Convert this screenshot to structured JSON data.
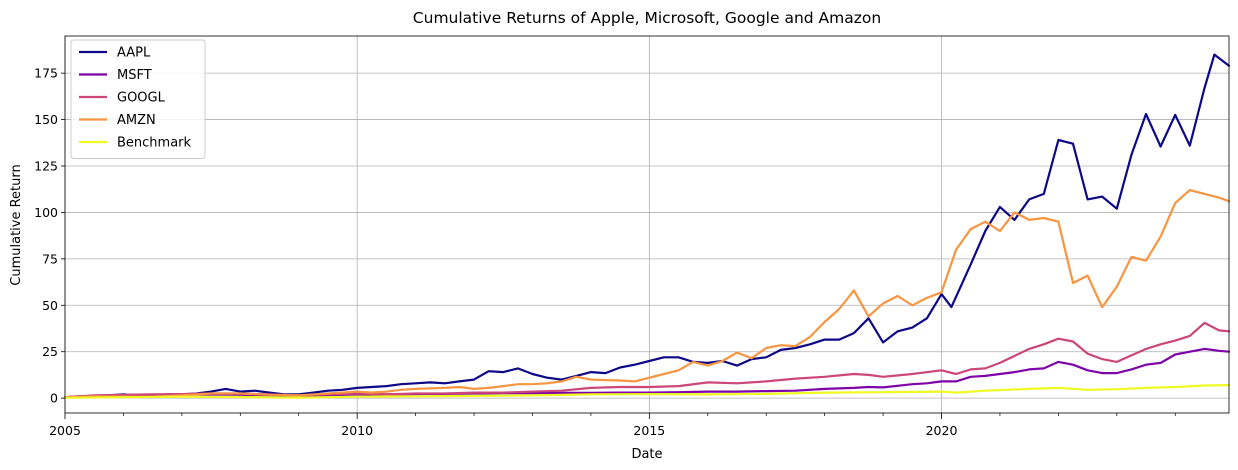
{
  "chart_data": {
    "type": "line",
    "title": "Cumulative Returns of Apple, Microsoft, Google and Amazon",
    "xlabel": "Date",
    "ylabel": "Cumulative Return",
    "xlim": [
      2005.0,
      2024.92
    ],
    "ylim": [
      -8,
      195
    ],
    "x_ticks": [
      2005,
      2010,
      2015,
      2020
    ],
    "y_ticks": [
      0,
      25,
      50,
      75,
      100,
      125,
      150,
      175
    ],
    "grid": true,
    "legend": "upper-left",
    "series": [
      {
        "name": "AAPL",
        "color": "#0d0887",
        "points": [
          [
            2005.0,
            0.5
          ],
          [
            2005.25,
            1.0
          ],
          [
            2005.5,
            1.2
          ],
          [
            2005.75,
            1.5
          ],
          [
            2006.0,
            2.0
          ],
          [
            2006.25,
            1.5
          ],
          [
            2006.5,
            1.5
          ],
          [
            2006.75,
            2.0
          ],
          [
            2007.0,
            2.0
          ],
          [
            2007.25,
            2.5
          ],
          [
            2007.5,
            3.5
          ],
          [
            2007.75,
            5.0
          ],
          [
            2008.0,
            3.5
          ],
          [
            2008.25,
            4.0
          ],
          [
            2008.5,
            3.0
          ],
          [
            2008.75,
            2.0
          ],
          [
            2009.0,
            2.0
          ],
          [
            2009.25,
            3.0
          ],
          [
            2009.5,
            4.0
          ],
          [
            2009.75,
            4.5
          ],
          [
            2010.0,
            5.5
          ],
          [
            2010.25,
            6.0
          ],
          [
            2010.5,
            6.5
          ],
          [
            2010.75,
            7.5
          ],
          [
            2011.0,
            8.0
          ],
          [
            2011.25,
            8.5
          ],
          [
            2011.5,
            8.0
          ],
          [
            2011.75,
            9.0
          ],
          [
            2012.0,
            10.0
          ],
          [
            2012.25,
            14.5
          ],
          [
            2012.5,
            14.0
          ],
          [
            2012.75,
            16.0
          ],
          [
            2013.0,
            13.0
          ],
          [
            2013.25,
            11.0
          ],
          [
            2013.5,
            10.0
          ],
          [
            2013.75,
            12.0
          ],
          [
            2014.0,
            14.0
          ],
          [
            2014.25,
            13.5
          ],
          [
            2014.5,
            16.5
          ],
          [
            2014.75,
            18.0
          ],
          [
            2015.0,
            20.0
          ],
          [
            2015.25,
            22.0
          ],
          [
            2015.5,
            22.0
          ],
          [
            2015.75,
            19.5
          ],
          [
            2016.0,
            19.0
          ],
          [
            2016.25,
            20.0
          ],
          [
            2016.5,
            17.5
          ],
          [
            2016.75,
            21.0
          ],
          [
            2017.0,
            22.0
          ],
          [
            2017.25,
            26.0
          ],
          [
            2017.5,
            27.0
          ],
          [
            2017.75,
            29.0
          ],
          [
            2018.0,
            31.5
          ],
          [
            2018.25,
            31.5
          ],
          [
            2018.5,
            35.0
          ],
          [
            2018.75,
            43.0
          ],
          [
            2019.0,
            30.0
          ],
          [
            2019.25,
            36.0
          ],
          [
            2019.5,
            38.0
          ],
          [
            2019.75,
            43.0
          ],
          [
            2020.0,
            56.0
          ],
          [
            2020.17,
            49.0
          ],
          [
            2020.5,
            72.0
          ],
          [
            2020.75,
            90.0
          ],
          [
            2021.0,
            103.0
          ],
          [
            2021.25,
            96.0
          ],
          [
            2021.5,
            107.0
          ],
          [
            2021.75,
            110.0
          ],
          [
            2022.0,
            139.0
          ],
          [
            2022.25,
            137.0
          ],
          [
            2022.5,
            107.0
          ],
          [
            2022.75,
            108.5
          ],
          [
            2023.0,
            102.0
          ],
          [
            2023.25,
            131.0
          ],
          [
            2023.5,
            153.0
          ],
          [
            2023.75,
            135.5
          ],
          [
            2024.0,
            152.5
          ],
          [
            2024.25,
            136.0
          ],
          [
            2024.5,
            167.0
          ],
          [
            2024.67,
            185.0
          ],
          [
            2024.92,
            179.0
          ]
        ]
      },
      {
        "name": "MSFT",
        "color": "#7e03a8",
        "points": [
          [
            2005.0,
            0.5
          ],
          [
            2005.5,
            1.2
          ],
          [
            2006.0,
            1.5
          ],
          [
            2006.5,
            1.5
          ],
          [
            2007.0,
            1.8
          ],
          [
            2007.5,
            2.0
          ],
          [
            2008.0,
            1.8
          ],
          [
            2008.5,
            1.5
          ],
          [
            2009.0,
            1.2
          ],
          [
            2009.5,
            1.5
          ],
          [
            2010.0,
            2.0
          ],
          [
            2010.5,
            2.0
          ],
          [
            2011.0,
            2.2
          ],
          [
            2011.5,
            2.3
          ],
          [
            2012.0,
            2.5
          ],
          [
            2012.5,
            2.7
          ],
          [
            2013.0,
            2.7
          ],
          [
            2013.5,
            2.8
          ],
          [
            2014.0,
            2.8
          ],
          [
            2014.5,
            3.0
          ],
          [
            2015.0,
            3.0
          ],
          [
            2015.5,
            3.2
          ],
          [
            2016.0,
            3.5
          ],
          [
            2016.5,
            3.5
          ],
          [
            2017.0,
            3.8
          ],
          [
            2017.5,
            4.0
          ],
          [
            2018.0,
            5.0
          ],
          [
            2018.5,
            5.5
          ],
          [
            2018.75,
            6.0
          ],
          [
            2019.0,
            5.8
          ],
          [
            2019.5,
            7.5
          ],
          [
            2019.75,
            8.0
          ],
          [
            2020.0,
            9.0
          ],
          [
            2020.25,
            9.0
          ],
          [
            2020.5,
            11.5
          ],
          [
            2020.75,
            12.0
          ],
          [
            2021.0,
            13.0
          ],
          [
            2021.25,
            14.0
          ],
          [
            2021.5,
            15.5
          ],
          [
            2021.75,
            16.0
          ],
          [
            2022.0,
            19.5
          ],
          [
            2022.25,
            18.0
          ],
          [
            2022.5,
            15.0
          ],
          [
            2022.75,
            13.5
          ],
          [
            2023.0,
            13.5
          ],
          [
            2023.25,
            15.5
          ],
          [
            2023.5,
            18.0
          ],
          [
            2023.75,
            19.0
          ],
          [
            2024.0,
            23.5
          ],
          [
            2024.25,
            25.0
          ],
          [
            2024.5,
            26.5
          ],
          [
            2024.75,
            25.5
          ],
          [
            2024.92,
            25.0
          ]
        ]
      },
      {
        "name": "GOOGL",
        "color": "#cc4778",
        "points": [
          [
            2005.0,
            0.5
          ],
          [
            2005.5,
            1.5
          ],
          [
            2006.0,
            1.8
          ],
          [
            2006.5,
            2.0
          ],
          [
            2007.0,
            2.2
          ],
          [
            2007.5,
            2.5
          ],
          [
            2008.0,
            2.5
          ],
          [
            2008.5,
            2.0
          ],
          [
            2009.0,
            1.5
          ],
          [
            2009.5,
            2.0
          ],
          [
            2010.0,
            2.5
          ],
          [
            2010.5,
            2.0
          ],
          [
            2011.0,
            2.5
          ],
          [
            2011.5,
            2.5
          ],
          [
            2012.0,
            3.0
          ],
          [
            2012.5,
            3.0
          ],
          [
            2013.0,
            3.5
          ],
          [
            2013.5,
            4.0
          ],
          [
            2014.0,
            5.5
          ],
          [
            2014.5,
            6.0
          ],
          [
            2015.0,
            6.0
          ],
          [
            2015.5,
            6.5
          ],
          [
            2016.0,
            8.5
          ],
          [
            2016.5,
            8.0
          ],
          [
            2017.0,
            9.0
          ],
          [
            2017.5,
            10.5
          ],
          [
            2018.0,
            11.5
          ],
          [
            2018.5,
            13.0
          ],
          [
            2018.75,
            12.5
          ],
          [
            2019.0,
            11.5
          ],
          [
            2019.5,
            13.0
          ],
          [
            2020.0,
            15.0
          ],
          [
            2020.25,
            13.0
          ],
          [
            2020.5,
            15.5
          ],
          [
            2020.75,
            16.0
          ],
          [
            2021.0,
            19.0
          ],
          [
            2021.5,
            26.5
          ],
          [
            2021.75,
            29.0
          ],
          [
            2022.0,
            32.0
          ],
          [
            2022.25,
            30.5
          ],
          [
            2022.5,
            24.0
          ],
          [
            2022.75,
            21.0
          ],
          [
            2023.0,
            19.5
          ],
          [
            2023.25,
            23.0
          ],
          [
            2023.5,
            26.5
          ],
          [
            2023.75,
            29.0
          ],
          [
            2024.0,
            31.0
          ],
          [
            2024.25,
            33.5
          ],
          [
            2024.5,
            40.5
          ],
          [
            2024.75,
            36.5
          ],
          [
            2024.92,
            36.0
          ]
        ]
      },
      {
        "name": "AMZN",
        "color": "#f89540",
        "points": [
          [
            2005.0,
            0.5
          ],
          [
            2005.5,
            1.0
          ],
          [
            2006.0,
            0.8
          ],
          [
            2006.5,
            0.8
          ],
          [
            2007.0,
            1.5
          ],
          [
            2007.5,
            2.5
          ],
          [
            2008.0,
            2.5
          ],
          [
            2008.5,
            1.8
          ],
          [
            2009.0,
            1.5
          ],
          [
            2009.5,
            2.5
          ],
          [
            2010.0,
            3.5
          ],
          [
            2010.25,
            3.0
          ],
          [
            2010.5,
            3.5
          ],
          [
            2010.75,
            4.5
          ],
          [
            2011.0,
            5.0
          ],
          [
            2011.5,
            5.5
          ],
          [
            2011.75,
            6.0
          ],
          [
            2012.0,
            5.0
          ],
          [
            2012.25,
            5.5
          ],
          [
            2012.5,
            6.5
          ],
          [
            2012.75,
            7.5
          ],
          [
            2013.0,
            7.5
          ],
          [
            2013.25,
            8.0
          ],
          [
            2013.5,
            9.0
          ],
          [
            2013.75,
            11.5
          ],
          [
            2014.0,
            10.0
          ],
          [
            2014.5,
            9.5
          ],
          [
            2014.75,
            9.0
          ],
          [
            2015.0,
            11.0
          ],
          [
            2015.25,
            13.0
          ],
          [
            2015.5,
            15.0
          ],
          [
            2015.75,
            19.5
          ],
          [
            2016.0,
            17.5
          ],
          [
            2016.25,
            20.0
          ],
          [
            2016.5,
            24.5
          ],
          [
            2016.75,
            21.5
          ],
          [
            2017.0,
            27.0
          ],
          [
            2017.25,
            28.5
          ],
          [
            2017.5,
            28.0
          ],
          [
            2017.75,
            33.0
          ],
          [
            2018.0,
            41.0
          ],
          [
            2018.25,
            48.0
          ],
          [
            2018.5,
            58.0
          ],
          [
            2018.75,
            44.0
          ],
          [
            2019.0,
            51.0
          ],
          [
            2019.25,
            55.0
          ],
          [
            2019.5,
            50.0
          ],
          [
            2019.75,
            54.0
          ],
          [
            2020.0,
            57.0
          ],
          [
            2020.25,
            80.0
          ],
          [
            2020.5,
            91.0
          ],
          [
            2020.75,
            95.0
          ],
          [
            2021.0,
            90.0
          ],
          [
            2021.25,
            100.0
          ],
          [
            2021.5,
            96.0
          ],
          [
            2021.75,
            97.0
          ],
          [
            2022.0,
            95.0
          ],
          [
            2022.25,
            62.0
          ],
          [
            2022.5,
            66.0
          ],
          [
            2022.75,
            49.0
          ],
          [
            2023.0,
            60.0
          ],
          [
            2023.25,
            76.0
          ],
          [
            2023.5,
            74.0
          ],
          [
            2023.75,
            87.0
          ],
          [
            2024.0,
            105.0
          ],
          [
            2024.25,
            112.0
          ],
          [
            2024.5,
            110.0
          ],
          [
            2024.75,
            108.0
          ],
          [
            2024.92,
            106.0
          ]
        ]
      },
      {
        "name": "Benchmark",
        "color": "#f0f921",
        "points": [
          [
            2005.0,
            0.2
          ],
          [
            2006.0,
            0.5
          ],
          [
            2007.0,
            0.8
          ],
          [
            2008.0,
            0.6
          ],
          [
            2009.0,
            0.3
          ],
          [
            2010.0,
            0.8
          ],
          [
            2011.0,
            1.0
          ],
          [
            2012.0,
            1.2
          ],
          [
            2013.0,
            1.5
          ],
          [
            2014.0,
            2.0
          ],
          [
            2015.0,
            2.2
          ],
          [
            2016.0,
            2.0
          ],
          [
            2017.0,
            2.3
          ],
          [
            2018.0,
            3.0
          ],
          [
            2019.0,
            3.2
          ],
          [
            2020.0,
            3.5
          ],
          [
            2020.25,
            3.0
          ],
          [
            2020.75,
            4.0
          ],
          [
            2021.5,
            5.0
          ],
          [
            2022.0,
            5.5
          ],
          [
            2022.5,
            4.5
          ],
          [
            2023.0,
            4.8
          ],
          [
            2023.5,
            5.5
          ],
          [
            2024.0,
            6.0
          ],
          [
            2024.5,
            6.8
          ],
          [
            2024.92,
            7.0
          ]
        ]
      }
    ]
  }
}
